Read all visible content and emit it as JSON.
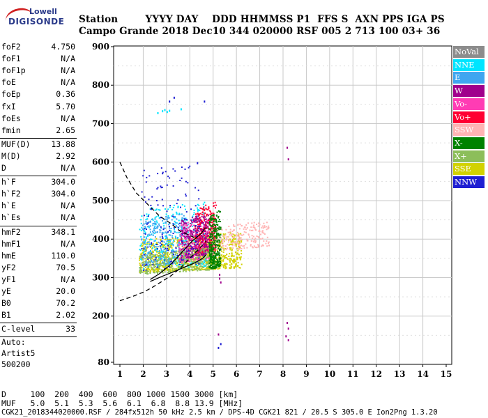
{
  "logo": {
    "brand": "Lowell",
    "product": "DIGISONDE"
  },
  "header": {
    "line1": "Station        YYYY DAY    DDD HHMMSS P1  FFS S  AXN PPS IGA PS",
    "line2": "Campo Grande 2018 Dec10 344 020000 RSF 005 2 713 100 03+ 36"
  },
  "params": [
    {
      "k": "foF2",
      "v": "4.750"
    },
    {
      "k": "foF1",
      "v": "N/A"
    },
    {
      "k": "foF1p",
      "v": "N/A"
    },
    {
      "k": "foE",
      "v": "N/A"
    },
    {
      "k": "foEp",
      "v": "0.36"
    },
    {
      "k": "fxI",
      "v": "5.70"
    },
    {
      "k": "foEs",
      "v": "N/A"
    },
    {
      "k": "fmin",
      "v": "2.65"
    },
    {
      "k": "MUF(D)",
      "v": "13.88"
    },
    {
      "k": "M(D)",
      "v": "2.92"
    },
    {
      "k": "D",
      "v": "N/A"
    },
    {
      "k": "h`F",
      "v": "304.0"
    },
    {
      "k": "h`F2",
      "v": "304.0"
    },
    {
      "k": "h`E",
      "v": "N/A"
    },
    {
      "k": "h`Es",
      "v": "N/A"
    },
    {
      "k": "hmF2",
      "v": "348.1"
    },
    {
      "k": "hmF1",
      "v": "N/A"
    },
    {
      "k": "hmE",
      "v": "110.0"
    },
    {
      "k": "yF2",
      "v": "70.5"
    },
    {
      "k": "yF1",
      "v": "N/A"
    },
    {
      "k": "yE",
      "v": "20.0"
    },
    {
      "k": "B0",
      "v": "70.2"
    },
    {
      "k": "B1",
      "v": "2.02"
    },
    {
      "k": "C-level",
      "v": "33"
    }
  ],
  "auto": {
    "l1": "Auto:",
    "l2": "Artist5",
    "l3": "500200"
  },
  "legend": [
    {
      "label": "NoVal",
      "color": "#8c8c8c"
    },
    {
      "label": "NNE",
      "color": "#00e5ff"
    },
    {
      "label": "E",
      "color": "#3fa6f0"
    },
    {
      "label": "W",
      "color": "#a0008c"
    },
    {
      "label": "Vo-",
      "color": "#ff3cb4"
    },
    {
      "label": "Vo+",
      "color": "#ff0032"
    },
    {
      "label": "SSW",
      "color": "#ffb4b4"
    },
    {
      "label": "X-",
      "color": "#008200"
    },
    {
      "label": "X+",
      "color": "#8cbe5a"
    },
    {
      "label": "SSE",
      "color": "#d2d200"
    },
    {
      "label": "NNW",
      "color": "#1e1ed2"
    }
  ],
  "footer": {
    "d_row": "D     100  200  400  600  800 1000 1500 3000 [km]",
    "muf_row": "MUF   5.0  5.1  5.3  5.6  6.1  6.8  8.8 13.9 [MHz]",
    "info": "CGK21_2018344020000.RSF / 284fx512h 50 kHz 2.5 km / DPS-4D CGK21 821 / 20.5 S 305.0 E Ion2Png 1.3.20"
  },
  "chart_data": {
    "type": "scatter",
    "xlabel": "",
    "ylabel": "",
    "xlim": [
      1,
      15
    ],
    "ylim": [
      80,
      900
    ],
    "xticks": [
      1,
      2,
      3,
      4,
      5,
      6,
      7,
      8,
      9,
      10,
      11,
      12,
      13,
      14,
      15
    ],
    "yticks": [
      80,
      200,
      300,
      400,
      500,
      600,
      700,
      800,
      900
    ],
    "grid": true,
    "traces": [
      {
        "name": "",
        "style": "dashed",
        "x": [
          1.0,
          1.3,
          1.7,
          2.2,
          2.7,
          3.2,
          3.6,
          4.0,
          4.3
        ],
        "y": [
          600,
          560,
          520,
          490,
          460,
          440,
          420,
          410,
          400
        ]
      },
      {
        "name": "",
        "style": "dashed",
        "x": [
          1.0,
          1.5,
          2.0,
          2.4,
          2.8,
          3.2,
          3.6,
          4.0,
          4.4,
          4.7
        ],
        "y": [
          240,
          250,
          262,
          275,
          290,
          305,
          325,
          350,
          375,
          395
        ]
      },
      {
        "name": "",
        "style": "solid",
        "x": [
          2.3,
          2.8,
          3.3,
          3.8,
          4.2,
          4.5,
          4.65,
          4.7
        ],
        "y": [
          290,
          303,
          315,
          328,
          338,
          348,
          356,
          360
        ]
      },
      {
        "name": "",
        "style": "solid",
        "x": [
          2.3,
          2.7,
          3.1,
          3.5,
          3.8,
          4.1,
          4.3,
          4.5,
          4.6,
          4.7
        ],
        "y": [
          295,
          310,
          330,
          355,
          375,
          395,
          405,
          415,
          425,
          430
        ]
      }
    ],
    "clusters": [
      {
        "series": "SSE",
        "xrange": [
          1.8,
          6.2
        ],
        "yrange": [
          315,
          420
        ]
      },
      {
        "series": "SSW",
        "xrange": [
          4.6,
          7.4
        ],
        "yrange": [
          370,
          450
        ]
      },
      {
        "series": "NNE",
        "xrange": [
          1.8,
          4.7
        ],
        "yrange": [
          320,
          500
        ]
      },
      {
        "series": "E",
        "xrange": [
          1.9,
          3.9
        ],
        "yrange": [
          330,
          470
        ]
      },
      {
        "series": "Vo-",
        "xrange": [
          3.5,
          5.0
        ],
        "yrange": [
          340,
          460
        ]
      },
      {
        "series": "Vo+",
        "xrange": [
          4.2,
          5.1
        ],
        "yrange": [
          360,
          500
        ]
      },
      {
        "series": "W",
        "xrange": [
          3.6,
          4.8
        ],
        "yrange": [
          350,
          470
        ]
      },
      {
        "series": "NNW",
        "xrange": [
          1.9,
          4.4
        ],
        "yrange": [
          320,
          600
        ]
      },
      {
        "series": "X+",
        "xrange": [
          1.8,
          5.0
        ],
        "yrange": [
          310,
          380
        ]
      },
      {
        "series": "X-",
        "xrange": [
          4.8,
          5.3
        ],
        "yrange": [
          320,
          480
        ]
      }
    ],
    "points": [
      {
        "series": "W",
        "x": [
          5.25,
          5.3,
          5.25,
          5.2,
          8.15,
          8.2,
          8.15,
          8.2,
          8.1,
          8.2
        ],
        "y": [
          300,
          290,
          310,
          155,
          640,
          610,
          185,
          170,
          150,
          140
        ]
      },
      {
        "series": "NNE",
        "x": [
          2.8,
          2.9,
          3.0,
          3.1,
          2.6,
          3.6
        ],
        "y": [
          735,
          738,
          733,
          736,
          730,
          740
        ]
      },
      {
        "series": "NNW",
        "x": [
          3.3,
          3.1,
          4.6,
          4.3,
          5.3,
          5.2
        ],
        "y": [
          770,
          760,
          760,
          600,
          130,
          120
        ]
      }
    ]
  }
}
